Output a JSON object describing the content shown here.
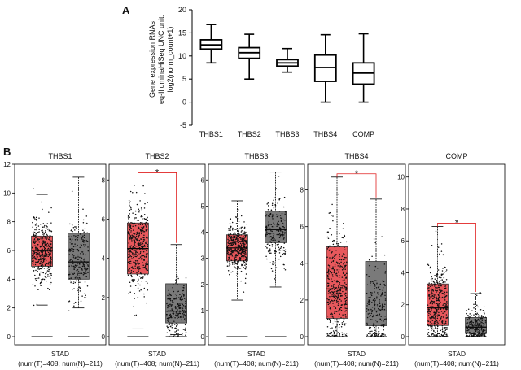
{
  "panel_labels": {
    "a": "A",
    "b": "B"
  },
  "colors": {
    "tumor": "#e8585c",
    "normal": "#7a7a7a",
    "significance": "#e02020",
    "box_line": "#000000"
  },
  "chart_data": [
    {
      "type": "box",
      "panel": "A",
      "categories": [
        "THBS1",
        "THBS2",
        "THBS3",
        "THBS4",
        "COMP"
      ],
      "ylabel": "Gene expression RNAs\neq-IlluminaHiSeq UNC unit:\nlog2(norm_count+1)",
      "ylim": [
        -5,
        20
      ],
      "yticks": [
        -5,
        0,
        5,
        10,
        15,
        20
      ],
      "boxes": [
        {
          "name": "THBS1",
          "min": 8.5,
          "q1": 11.5,
          "median": 12.4,
          "q3": 13.5,
          "max": 16.8
        },
        {
          "name": "THBS2",
          "min": 5.0,
          "q1": 9.5,
          "median": 10.7,
          "q3": 11.8,
          "max": 14.7
        },
        {
          "name": "THBS3",
          "min": 6.5,
          "q1": 7.8,
          "median": 8.5,
          "q3": 9.2,
          "max": 11.6
        },
        {
          "name": "THBS4",
          "min": 0.0,
          "q1": 4.5,
          "median": 7.5,
          "q3": 10.2,
          "max": 14.6
        },
        {
          "name": "COMP",
          "min": 0.0,
          "q1": 3.9,
          "median": 6.3,
          "q3": 8.5,
          "max": 14.8
        }
      ]
    },
    {
      "type": "box",
      "panel": "B",
      "title": "THBS1",
      "xlabel": "STAD",
      "subtitle": "(num(T)=408; num(N)=211)",
      "ylim": [
        0,
        12
      ],
      "yticks": [
        0,
        2,
        4,
        6,
        8,
        10,
        12
      ],
      "significant": false,
      "groups": [
        {
          "name": "T",
          "n": 408,
          "min": 2.2,
          "q1": 4.9,
          "median": 6.0,
          "q3": 7.0,
          "max": 9.9,
          "spread": 1.5
        },
        {
          "name": "N",
          "n": 211,
          "min": 2.0,
          "q1": 4.0,
          "median": 5.2,
          "q3": 7.2,
          "max": 11.1,
          "spread": 2.0
        }
      ]
    },
    {
      "type": "box",
      "panel": "B",
      "title": "THBS2",
      "xlabel": "STAD",
      "subtitle": "(num(T)=408; num(N)=211)",
      "ylim": [
        0,
        8.8
      ],
      "yticks": [
        0,
        2,
        4,
        6,
        8
      ],
      "significant": true,
      "significance_label": "*",
      "groups": [
        {
          "name": "T",
          "n": 408,
          "min": 0.4,
          "q1": 3.2,
          "median": 4.5,
          "q3": 5.8,
          "max": 8.2,
          "spread": 1.6
        },
        {
          "name": "N",
          "n": 211,
          "min": 0.1,
          "q1": 0.7,
          "median": 1.3,
          "q3": 2.7,
          "max": 4.7,
          "spread": 1.0
        }
      ]
    },
    {
      "type": "box",
      "panel": "B",
      "title": "THBS3",
      "xlabel": "STAD",
      "subtitle": "(num(T)=408; num(N)=211)",
      "ylim": [
        0,
        6.6
      ],
      "yticks": [
        0,
        1,
        2,
        3,
        4,
        5,
        6
      ],
      "significant": false,
      "groups": [
        {
          "name": "T",
          "n": 408,
          "min": 1.4,
          "q1": 2.9,
          "median": 3.4,
          "q3": 3.9,
          "max": 5.2,
          "spread": 0.6
        },
        {
          "name": "N",
          "n": 211,
          "min": 1.9,
          "q1": 3.6,
          "median": 4.1,
          "q3": 4.8,
          "max": 6.3,
          "spread": 0.8
        }
      ]
    },
    {
      "type": "box",
      "panel": "B",
      "title": "THBS4",
      "xlabel": "STAD",
      "subtitle": "(num(T)=408; num(N)=211)",
      "ylim": [
        0,
        9.4
      ],
      "yticks": [
        0,
        2,
        4,
        6,
        8
      ],
      "significant": true,
      "significance_label": "*",
      "groups": [
        {
          "name": "T",
          "n": 408,
          "min": 0.0,
          "q1": 1.0,
          "median": 2.6,
          "q3": 4.9,
          "max": 8.7,
          "spread": 2.2
        },
        {
          "name": "N",
          "n": 211,
          "min": 0.0,
          "q1": 0.6,
          "median": 1.4,
          "q3": 4.1,
          "max": 7.5,
          "spread": 1.9
        }
      ]
    },
    {
      "type": "box",
      "panel": "B",
      "title": "COMP",
      "xlabel": "STAD",
      "subtitle": "(num(T)=408; num(N)=211)",
      "ylim": [
        0,
        10.8
      ],
      "yticks": [
        0,
        2,
        4,
        6,
        8,
        10
      ],
      "significant": true,
      "significance_label": "*",
      "groups": [
        {
          "name": "T",
          "n": 408,
          "min": 0.0,
          "q1": 0.7,
          "median": 1.8,
          "q3": 3.3,
          "max": 6.9,
          "spread": 1.8
        },
        {
          "name": "N",
          "n": 211,
          "min": 0.0,
          "q1": 0.2,
          "median": 0.6,
          "q3": 1.2,
          "max": 2.7,
          "spread": 0.8
        }
      ]
    }
  ]
}
